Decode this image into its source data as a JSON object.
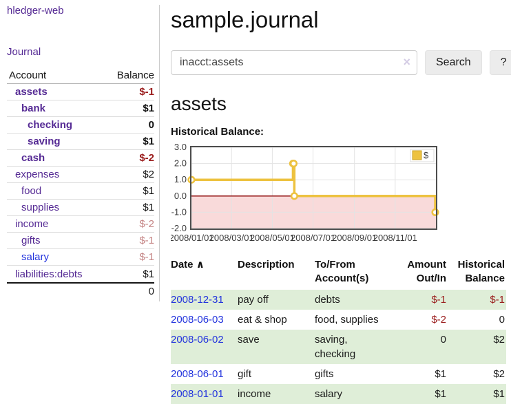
{
  "colors": {
    "purple_link": "#552a94",
    "blue_link": "#2233dd",
    "negative_strong": "#9a1c1c",
    "negative_soft": "#c58585",
    "row_highlight_green": "#dfeed8",
    "chart_line_yellow": "#edc240",
    "negative_region_pink": "#f9dada",
    "zero_line_red": "#8b0000"
  },
  "sidebar": {
    "brand": "hledger-web",
    "journal_link": "Journal",
    "headers": {
      "account": "Account",
      "balance": "Balance"
    },
    "accounts": [
      {
        "name": "assets",
        "balance": "$-1",
        "depth": 1,
        "bold": true,
        "balance_class": "neg-strong",
        "link_class": ""
      },
      {
        "name": "bank",
        "balance": "$1",
        "depth": 2,
        "bold": true,
        "balance_class": "",
        "link_class": ""
      },
      {
        "name": "checking",
        "balance": "0",
        "depth": 3,
        "bold": true,
        "balance_class": "",
        "link_class": ""
      },
      {
        "name": "saving",
        "balance": "$1",
        "depth": 3,
        "bold": true,
        "balance_class": "",
        "link_class": ""
      },
      {
        "name": "cash",
        "balance": "$-2",
        "depth": 2,
        "bold": true,
        "balance_class": "neg-strong",
        "link_class": ""
      },
      {
        "name": "expenses",
        "balance": "$2",
        "depth": 1,
        "bold": false,
        "balance_class": "",
        "link_class": ""
      },
      {
        "name": "food",
        "balance": "$1",
        "depth": 2,
        "bold": false,
        "balance_class": "",
        "link_class": ""
      },
      {
        "name": "supplies",
        "balance": "$1",
        "depth": 2,
        "bold": false,
        "balance_class": "",
        "link_class": ""
      },
      {
        "name": "income",
        "balance": "$-2",
        "depth": 1,
        "bold": false,
        "balance_class": "neg-soft",
        "link_class": ""
      },
      {
        "name": "gifts",
        "balance": "$-1",
        "depth": 2,
        "bold": false,
        "balance_class": "neg-soft",
        "link_class": ""
      },
      {
        "name": "salary",
        "balance": "$-1",
        "depth": 2,
        "bold": false,
        "balance_class": "neg-soft",
        "link_class": "blue"
      },
      {
        "name": "liabilities:debts",
        "balance": "$1",
        "depth": 1,
        "bold": false,
        "balance_class": "",
        "link_class": ""
      }
    ],
    "total": "0"
  },
  "main": {
    "title": "sample.journal",
    "search": {
      "value": "inacct:assets",
      "clear_icon": "×",
      "button_label": "Search",
      "help_label": "?"
    },
    "account_heading": "assets",
    "chart_label": "Historical Balance:"
  },
  "chart_data": {
    "type": "line",
    "style": "step",
    "title": "Historical Balance",
    "series": [
      {
        "name": "$",
        "color": "#edc240",
        "points": [
          {
            "date": "2008-01-01",
            "value": 1
          },
          {
            "date": "2008-06-01",
            "value": 2
          },
          {
            "date": "2008-06-02",
            "value": 2
          },
          {
            "date": "2008-06-03",
            "value": 0
          },
          {
            "date": "2008-12-31",
            "value": -1
          }
        ]
      }
    ],
    "xlim": [
      "2008-01-01",
      "2009-01-01"
    ],
    "ylim": [
      -2,
      3
    ],
    "x_ticks": [
      "2008/01/01",
      "2008/03/01",
      "2008/05/01",
      "2008/07/01",
      "2008/09/01",
      "2008/11/01"
    ],
    "y_ticks": [
      "3.0",
      "2.0",
      "1.0",
      "0.0",
      "-1.0",
      "-2.0"
    ],
    "grid": true,
    "legend_position": "top-right",
    "zero_line_color": "#8b0000",
    "negative_region_color": "#f9dada"
  },
  "register": {
    "headers": {
      "date": "Date",
      "sort_icon": "∧",
      "description": "Description",
      "accounts": "To/From Account(s)",
      "amount": "Amount Out/In",
      "balance": "Historical Balance"
    },
    "rows": [
      {
        "date": "2008-12-31",
        "description": "pay off",
        "accounts": "debts",
        "amount": "$-1",
        "amount_class": "neg-strong",
        "balance": "$-1",
        "balance_class": "neg-strong",
        "shaded": true
      },
      {
        "date": "2008-06-03",
        "description": "eat & shop",
        "accounts": "food, supplies",
        "amount": "$-2",
        "amount_class": "neg-strong",
        "balance": "0",
        "balance_class": "",
        "shaded": false
      },
      {
        "date": "2008-06-02",
        "description": "save",
        "accounts": "saving, checking",
        "amount": "0",
        "amount_class": "",
        "balance": "$2",
        "balance_class": "",
        "shaded": true
      },
      {
        "date": "2008-06-01",
        "description": "gift",
        "accounts": "gifts",
        "amount": "$1",
        "amount_class": "",
        "balance": "$2",
        "balance_class": "",
        "shaded": false
      },
      {
        "date": "2008-01-01",
        "description": "income",
        "accounts": "salary",
        "amount": "$1",
        "amount_class": "",
        "balance": "$1",
        "balance_class": "",
        "shaded": true
      }
    ]
  }
}
